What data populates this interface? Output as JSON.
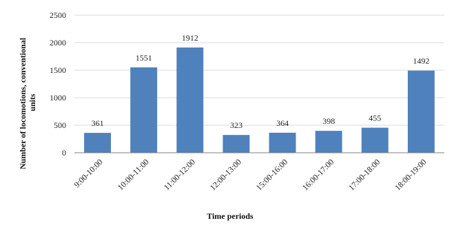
{
  "chart_data": {
    "type": "bar",
    "title": "",
    "categories": [
      "9:00-10:00",
      "10:00-11:00",
      "11:00-12:00",
      "12:00-13:00",
      "15:00-16:00",
      "16:00-17:00",
      "17:00-18:00",
      "18:00-19:00"
    ],
    "values": [
      361,
      1551,
      1912,
      323,
      364,
      398,
      455,
      1492
    ],
    "xlabel": "Time periods",
    "ylabel_lines": [
      "Number of locomotions, conventional",
      "units"
    ],
    "ylim": [
      0,
      2500
    ],
    "yticks": [
      0,
      500,
      1000,
      1500,
      2000,
      2500
    ],
    "grid": true,
    "data_labels": true,
    "bar_color": "#4f81bd"
  }
}
